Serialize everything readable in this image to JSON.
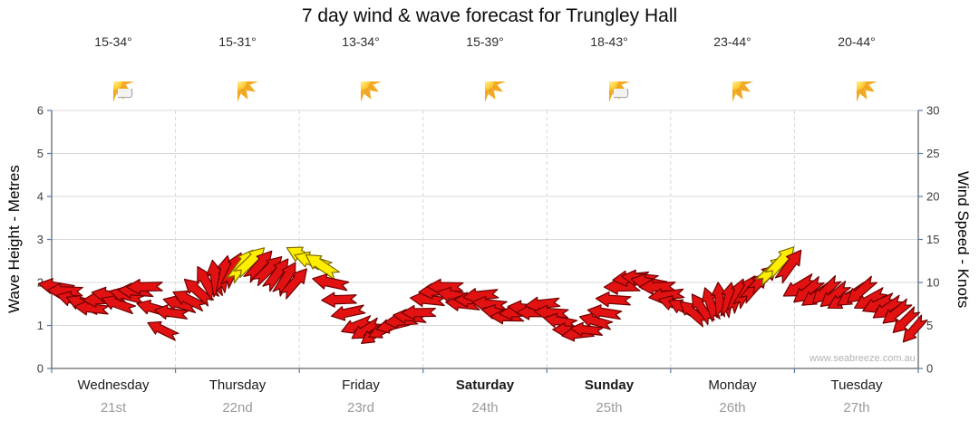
{
  "title": "7 day wind & wave forecast for Trungley Hall",
  "watermark": "www.seabreeze.com.au",
  "axes": {
    "left_label": "Wave Height - Metres",
    "right_label": "Wind Speed - Knots"
  },
  "days": [
    {
      "name": "Wednesday",
      "date": "21st",
      "temp": "15-34°",
      "icon": "sun-cloud",
      "emphasis": false
    },
    {
      "name": "Thursday",
      "date": "22nd",
      "temp": "15-31°",
      "icon": "sunny",
      "emphasis": false
    },
    {
      "name": "Friday",
      "date": "23rd",
      "temp": "13-34°",
      "icon": "sunny",
      "emphasis": false
    },
    {
      "name": "Saturday",
      "date": "24th",
      "temp": "15-39°",
      "icon": "sunny",
      "emphasis": true
    },
    {
      "name": "Sunday",
      "date": "25th",
      "temp": "18-43°",
      "icon": "sun-cloud",
      "emphasis": true
    },
    {
      "name": "Monday",
      "date": "26th",
      "temp": "23-44°",
      "icon": "sunny",
      "emphasis": false
    },
    {
      "name": "Tuesday",
      "date": "27th",
      "temp": "20-44°",
      "icon": "sunny",
      "emphasis": false
    }
  ],
  "chart_data": {
    "type": "scatter",
    "glyph": "wind-direction-arrow",
    "title": "7 day wind & wave forecast for Trungley Hall",
    "left_axis": {
      "label": "Wave Height - Metres",
      "min": 0,
      "max": 6,
      "ticks": [
        0,
        1,
        2,
        3,
        4,
        5,
        6
      ]
    },
    "right_axis": {
      "label": "Wind Speed - Knots",
      "min": 0,
      "max": 30,
      "ticks": [
        0,
        5,
        10,
        15,
        20,
        25,
        30
      ]
    },
    "x_categories": [
      "Wednesday 21st",
      "Thursday 22nd",
      "Friday 23rd",
      "Saturday 24th",
      "Sunday 25th",
      "Monday 26th",
      "Tuesday 27th"
    ],
    "speed_unit": "knots",
    "arrow_fields": [
      "x_fraction_of_week",
      "wind_speed_knots",
      "angle_deg_clockwise_from_east",
      "color r=red y=yellow"
    ],
    "arrows": [
      [
        0.0051,
        9.5,
        190,
        "r"
      ],
      [
        0.0153,
        9,
        182,
        "r"
      ],
      [
        0.0255,
        8,
        195,
        "r"
      ],
      [
        0.0357,
        7.5,
        203,
        "r"
      ],
      [
        0.0459,
        7,
        186,
        "r"
      ],
      [
        0.0561,
        8,
        178,
        "r"
      ],
      [
        0.0663,
        8.5,
        190,
        "r"
      ],
      [
        0.0765,
        7.5,
        200,
        "r"
      ],
      [
        0.0867,
        8.5,
        194,
        "r"
      ],
      [
        0.0969,
        9,
        184,
        "r"
      ],
      [
        0.1071,
        9.5,
        179,
        "r"
      ],
      [
        0.1173,
        7,
        196,
        "r"
      ],
      [
        0.1276,
        4.5,
        206,
        "r"
      ],
      [
        0.1378,
        6.5,
        188,
        "r"
      ],
      [
        0.148,
        7.5,
        196,
        "r"
      ],
      [
        0.1582,
        8,
        206,
        "r"
      ],
      [
        0.1684,
        9,
        222,
        "r"
      ],
      [
        0.1786,
        10,
        241,
        "r"
      ],
      [
        0.1888,
        10.5,
        261,
        "r"
      ],
      [
        0.199,
        11,
        281,
        "r"
      ],
      [
        0.2092,
        11.5,
        296,
        "r"
      ],
      [
        0.2194,
        12,
        306,
        "y"
      ],
      [
        0.2296,
        12.5,
        316,
        "y"
      ],
      [
        0.2398,
        12,
        311,
        "r"
      ],
      [
        0.25,
        11.5,
        316,
        "r"
      ],
      [
        0.2602,
        11,
        306,
        "r"
      ],
      [
        0.2704,
        10.5,
        301,
        "r"
      ],
      [
        0.2806,
        10,
        311,
        "r"
      ],
      [
        0.2908,
        13,
        208,
        "y"
      ],
      [
        0.301,
        12.5,
        198,
        "y"
      ],
      [
        0.3112,
        12,
        214,
        "y"
      ],
      [
        0.3214,
        10,
        192,
        "r"
      ],
      [
        0.3316,
        8,
        178,
        "r"
      ],
      [
        0.3418,
        6.5,
        168,
        "r"
      ],
      [
        0.352,
        5,
        158,
        "r"
      ],
      [
        0.3622,
        4.5,
        148,
        "r"
      ],
      [
        0.3724,
        4,
        144,
        "r"
      ],
      [
        0.3827,
        4.5,
        154,
        "r"
      ],
      [
        0.3929,
        5,
        166,
        "r"
      ],
      [
        0.4031,
        5.5,
        176,
        "r"
      ],
      [
        0.4133,
        6,
        186,
        "r"
      ],
      [
        0.4235,
        6.5,
        179,
        "r"
      ],
      [
        0.4337,
        8,
        186,
        "r"
      ],
      [
        0.4439,
        9,
        176,
        "r"
      ],
      [
        0.4541,
        9.5,
        181,
        "r"
      ],
      [
        0.4643,
        8.5,
        191,
        "r"
      ],
      [
        0.4745,
        7.5,
        186,
        "r"
      ],
      [
        0.4847,
        8,
        179,
        "r"
      ],
      [
        0.4949,
        8.5,
        174,
        "r"
      ],
      [
        0.5051,
        7.5,
        186,
        "r"
      ],
      [
        0.5153,
        6.5,
        191,
        "r"
      ],
      [
        0.5255,
        6,
        181,
        "r"
      ],
      [
        0.5357,
        6.5,
        176,
        "r"
      ],
      [
        0.5459,
        7,
        186,
        "r"
      ],
      [
        0.5561,
        6.5,
        181,
        "r"
      ],
      [
        0.5663,
        7.5,
        174,
        "r"
      ],
      [
        0.5765,
        6.5,
        184,
        "r"
      ],
      [
        0.5867,
        5.5,
        191,
        "r"
      ],
      [
        0.5969,
        4.5,
        181,
        "r"
      ],
      [
        0.6071,
        4,
        174,
        "r"
      ],
      [
        0.6173,
        4.5,
        186,
        "r"
      ],
      [
        0.6276,
        5.5,
        196,
        "r"
      ],
      [
        0.6378,
        6.5,
        189,
        "r"
      ],
      [
        0.648,
        8,
        184,
        "r"
      ],
      [
        0.6582,
        9.5,
        179,
        "r"
      ],
      [
        0.6684,
        10.5,
        174,
        "r"
      ],
      [
        0.6786,
        10.5,
        186,
        "r"
      ],
      [
        0.6888,
        10,
        191,
        "r"
      ],
      [
        0.699,
        9.5,
        179,
        "r"
      ],
      [
        0.7092,
        8.5,
        173,
        "r"
      ],
      [
        0.7194,
        7.5,
        196,
        "r"
      ],
      [
        0.7296,
        7,
        206,
        "r"
      ],
      [
        0.7398,
        6.5,
        221,
        "r"
      ],
      [
        0.75,
        7,
        236,
        "r"
      ],
      [
        0.7602,
        7.5,
        251,
        "r"
      ],
      [
        0.7704,
        8,
        266,
        "r"
      ],
      [
        0.7806,
        8,
        281,
        "r"
      ],
      [
        0.7908,
        8.5,
        291,
        "r"
      ],
      [
        0.801,
        9,
        301,
        "r"
      ],
      [
        0.8112,
        9.5,
        311,
        "r"
      ],
      [
        0.8214,
        10.5,
        316,
        "r"
      ],
      [
        0.8316,
        11.5,
        317,
        "y"
      ],
      [
        0.8418,
        12.5,
        312,
        "y"
      ],
      [
        0.852,
        12,
        306,
        "r"
      ],
      [
        0.8622,
        9.5,
        149,
        "r"
      ],
      [
        0.8724,
        9,
        141,
        "r"
      ],
      [
        0.8827,
        8.5,
        146,
        "r"
      ],
      [
        0.8929,
        9,
        136,
        "r"
      ],
      [
        0.9031,
        8.5,
        141,
        "r"
      ],
      [
        0.9133,
        8,
        151,
        "r"
      ],
      [
        0.9235,
        8.5,
        146,
        "r"
      ],
      [
        0.9337,
        9,
        139,
        "r"
      ],
      [
        0.9439,
        8,
        151,
        "r"
      ],
      [
        0.9541,
        7.5,
        156,
        "r"
      ],
      [
        0.9643,
        7,
        146,
        "r"
      ],
      [
        0.9745,
        6.5,
        141,
        "r"
      ],
      [
        0.9847,
        5.5,
        136,
        "r"
      ],
      [
        0.9949,
        4.5,
        131,
        "r"
      ]
    ],
    "colors": {
      "arrow_red": "#e31212",
      "arrow_red_stroke": "#6e0000",
      "arrow_yellow": "#ffee00",
      "arrow_yellow_stroke": "#7d6c00",
      "grid": "#d8d8d8",
      "axis": "#666666",
      "tick": "#5b79a6",
      "tick_text": "#3d3d3d"
    },
    "grid": true,
    "legend": false
  }
}
